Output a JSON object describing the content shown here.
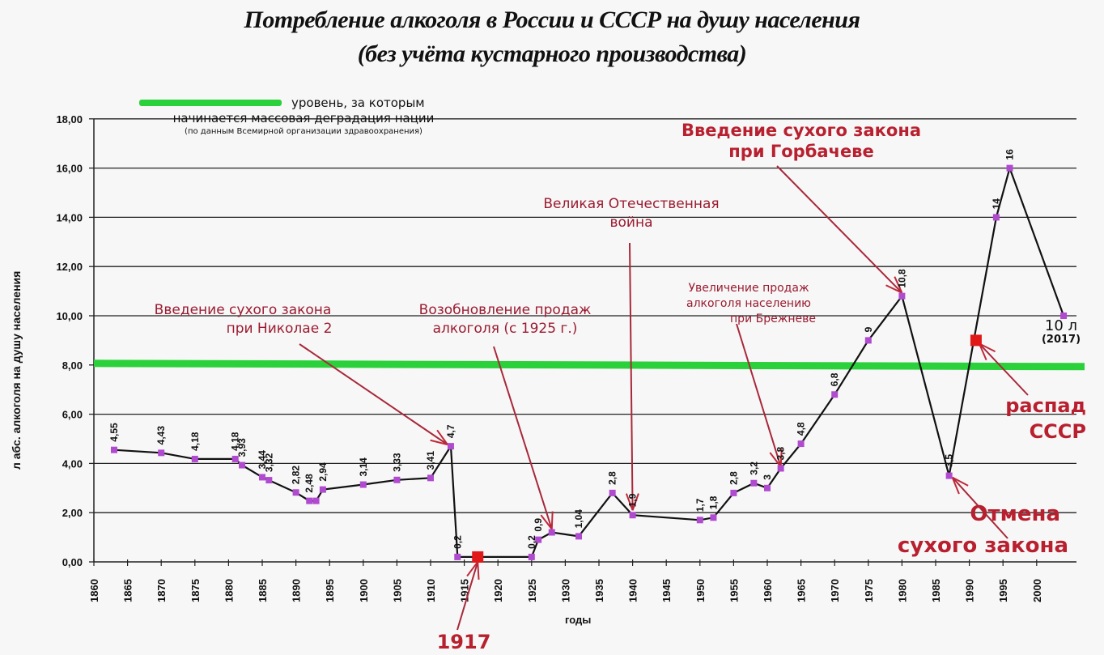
{
  "chart_data": {
    "type": "line",
    "title": "Потребление алкоголя в России и СССР на душу населения",
    "subtitle": "(без учёта кустарного производства)",
    "xlabel": "годы",
    "ylabel": "л абс. алкоголя на душу населения",
    "ylim": [
      0,
      18
    ],
    "xlim": [
      1860,
      2005
    ],
    "yticks": [
      "0,00",
      "2,00",
      "4,00",
      "6,00",
      "8,00",
      "10,00",
      "12,00",
      "14,00",
      "16,00",
      "18,00"
    ],
    "xticks": [
      "1860",
      "1865",
      "1870",
      "1875",
      "1880",
      "1885",
      "1890",
      "1895",
      "1900",
      "1905",
      "1910",
      "1915",
      "1920",
      "1925",
      "1930",
      "1935",
      "1940",
      "1945",
      "1950",
      "1955",
      "1960",
      "1965",
      "1970",
      "1975",
      "1980",
      "1985",
      "1990",
      "1995",
      "2000"
    ],
    "grid": true,
    "threshold_line": {
      "value": 8,
      "color": "#22cc33",
      "label": "уровень, за которым начинается массовая деградация нации",
      "note": "(по данным Всемирной организации здравоохранения)"
    },
    "series": [
      {
        "name": "Потребление алкоголя",
        "points": [
          {
            "x": 1863,
            "y": 4.55,
            "label": "4,55"
          },
          {
            "x": 1870,
            "y": 4.43,
            "label": "4,43"
          },
          {
            "x": 1875,
            "y": 4.18,
            "label": "4,18"
          },
          {
            "x": 1881,
            "y": 4.18,
            "label": "4,18"
          },
          {
            "x": 1882,
            "y": 3.93,
            "label": "3,93"
          },
          {
            "x": 1885,
            "y": 3.44,
            "label": "3,44"
          },
          {
            "x": 1886,
            "y": 3.32,
            "label": "3,32"
          },
          {
            "x": 1890,
            "y": 2.82,
            "label": "2,82"
          },
          {
            "x": 1892,
            "y": 2.48,
            "label": "2,48"
          },
          {
            "x": 1893,
            "y": 2.48,
            "label": ""
          },
          {
            "x": 1894,
            "y": 2.94,
            "label": "2,94"
          },
          {
            "x": 1900,
            "y": 3.14,
            "label": "3,14"
          },
          {
            "x": 1905,
            "y": 3.33,
            "label": "3,33"
          },
          {
            "x": 1910,
            "y": 3.41,
            "label": "3,41"
          },
          {
            "x": 1913,
            "y": 4.7,
            "label": "4,7"
          },
          {
            "x": 1914,
            "y": 0.2,
            "label": "0,2"
          },
          {
            "x": 1925,
            "y": 0.2,
            "label": "0,2"
          },
          {
            "x": 1926,
            "y": 0.9,
            "label": "0,9"
          },
          {
            "x": 1928,
            "y": 1.2,
            "label": ""
          },
          {
            "x": 1932,
            "y": 1.04,
            "label": "1,04"
          },
          {
            "x": 1937,
            "y": 2.8,
            "label": "2,8"
          },
          {
            "x": 1940,
            "y": 1.9,
            "label": "1,9"
          },
          {
            "x": 1950,
            "y": 1.7,
            "label": "1,7"
          },
          {
            "x": 1952,
            "y": 1.8,
            "label": "1,8"
          },
          {
            "x": 1955,
            "y": 2.8,
            "label": "2,8"
          },
          {
            "x": 1958,
            "y": 3.2,
            "label": "3,2"
          },
          {
            "x": 1960,
            "y": 3.0,
            "label": "3"
          },
          {
            "x": 1962,
            "y": 3.8,
            "label": "3,8"
          },
          {
            "x": 1965,
            "y": 4.8,
            "label": "4,8"
          },
          {
            "x": 1970,
            "y": 6.8,
            "label": "6,8"
          },
          {
            "x": 1975,
            "y": 9.0,
            "label": "9"
          },
          {
            "x": 1980,
            "y": 10.8,
            "label": "10,8"
          },
          {
            "x": 1987,
            "y": 3.5,
            "label": "3,5"
          },
          {
            "x": 1994,
            "y": 14.0,
            "label": "14"
          },
          {
            "x": 1996,
            "y": 16.0,
            "label": "16"
          },
          {
            "x": 2004,
            "y": 10.0,
            "label": "10 л (2017)"
          }
        ]
      }
    ],
    "event_markers": [
      {
        "x": 1917,
        "y": 0.2,
        "label": "1917"
      },
      {
        "x": 1991,
        "y": 9.0,
        "label": "распад СССР"
      }
    ],
    "annotations": [
      {
        "text": "Введение сухого закона при Николае 2",
        "target": {
          "x": 1913,
          "y": 4.7
        }
      },
      {
        "text": "Возобновление продаж алкоголя (с 1925 г.)",
        "target": {
          "x": 1928,
          "y": 1.2
        }
      },
      {
        "text": "Великая Отечественная война",
        "target": {
          "x": 1940,
          "y": 1.9
        }
      },
      {
        "text": "Увеличение продаж алкоголя населению при Брежневе",
        "target": {
          "x": 1962,
          "y": 3.8
        }
      },
      {
        "text": "Введение сухого закона при Горбачеве",
        "target": {
          "x": 1980,
          "y": 10.8
        }
      },
      {
        "text": "Отмена сухого закона",
        "target": {
          "x": 1987,
          "y": 3.5
        }
      },
      {
        "text": "распад СССР",
        "target": {
          "x": 1991,
          "y": 9.0
        }
      },
      {
        "text": "1917",
        "target": {
          "x": 1917,
          "y": 0.2
        }
      }
    ]
  },
  "header": {
    "title_line1": "Потребление алкоголя в России и СССР на душу населения",
    "title_line2": "(без учёта кустарного производства)"
  },
  "legend": {
    "line1": "уровень, за которым",
    "line2": "начинается массовая деградация нации",
    "note": "(по данным Всемирной организации здравоохранения)"
  },
  "annotations": {
    "nikolai_l1": "Введение сухого закона",
    "nikolai_l2": "при Николае 2",
    "resume_l1": "Возобновление продаж",
    "resume_l2": "алкоголя (с 1925 г.)",
    "war_l1": "Великая Отечественная",
    "war_l2": "война",
    "brezhnev_l1": "Увеличение продаж",
    "brezhnev_l2": "алкоголя населению",
    "brezhnev_l3": "при Брежневе",
    "gorbachev_l1": "Введение сухого закона",
    "gorbachev_l2": "при Горбачеве",
    "collapse_l1": "распад",
    "collapse_l2": "СССР",
    "repeal_l1": "Отмена",
    "repeal_l2": "сухого закона",
    "y1917": "1917",
    "end_l1": "10 л",
    "end_l2": "(2017)"
  },
  "axes": {
    "ylabel": "л абс. алкоголя на душу населения",
    "xlabel": "годы"
  }
}
